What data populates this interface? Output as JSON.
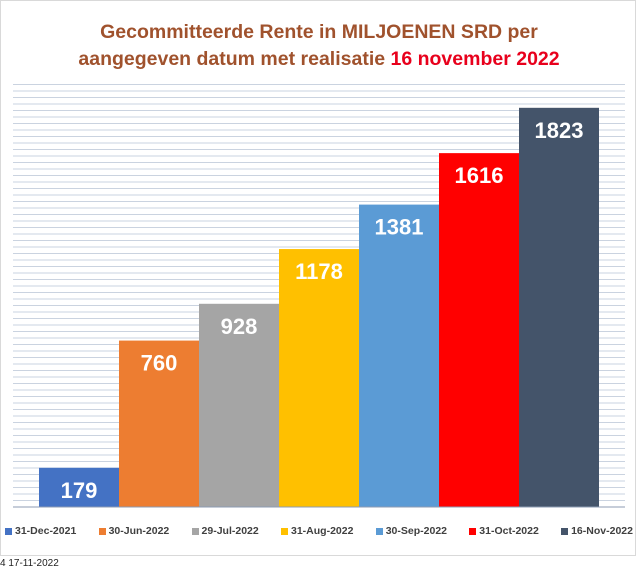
{
  "title": {
    "line1": "Gecommitteerde Rente in MILJOENEN SRD per",
    "line2_prefix": "aangegeven datum met realisatie ",
    "line2_highlight": "16 november 2022"
  },
  "footer": {
    "date_fragment": "4 17-11-2022"
  },
  "chart_data": {
    "type": "bar",
    "title": "Gecommitteerde Rente in MILJOENEN SRD per aangegeven datum met realisatie 16 november 2022",
    "categories": [
      "31-Dec-2021",
      "30-Jun-2022",
      "29-Jul-2022",
      "31-Aug-2022",
      "30-Sep-2022",
      "31-Oct-2022",
      "16-Nov-2022"
    ],
    "values": [
      179,
      760,
      928,
      1178,
      1381,
      1616,
      1823
    ],
    "colors": [
      "#4472c4",
      "#ed7d31",
      "#a5a5a5",
      "#ffc000",
      "#5b9bd5",
      "#ff0000",
      "#44546a"
    ],
    "ylim": [
      0,
      1950
    ],
    "grid": true,
    "legend_position": "bottom",
    "data_labels": true
  }
}
